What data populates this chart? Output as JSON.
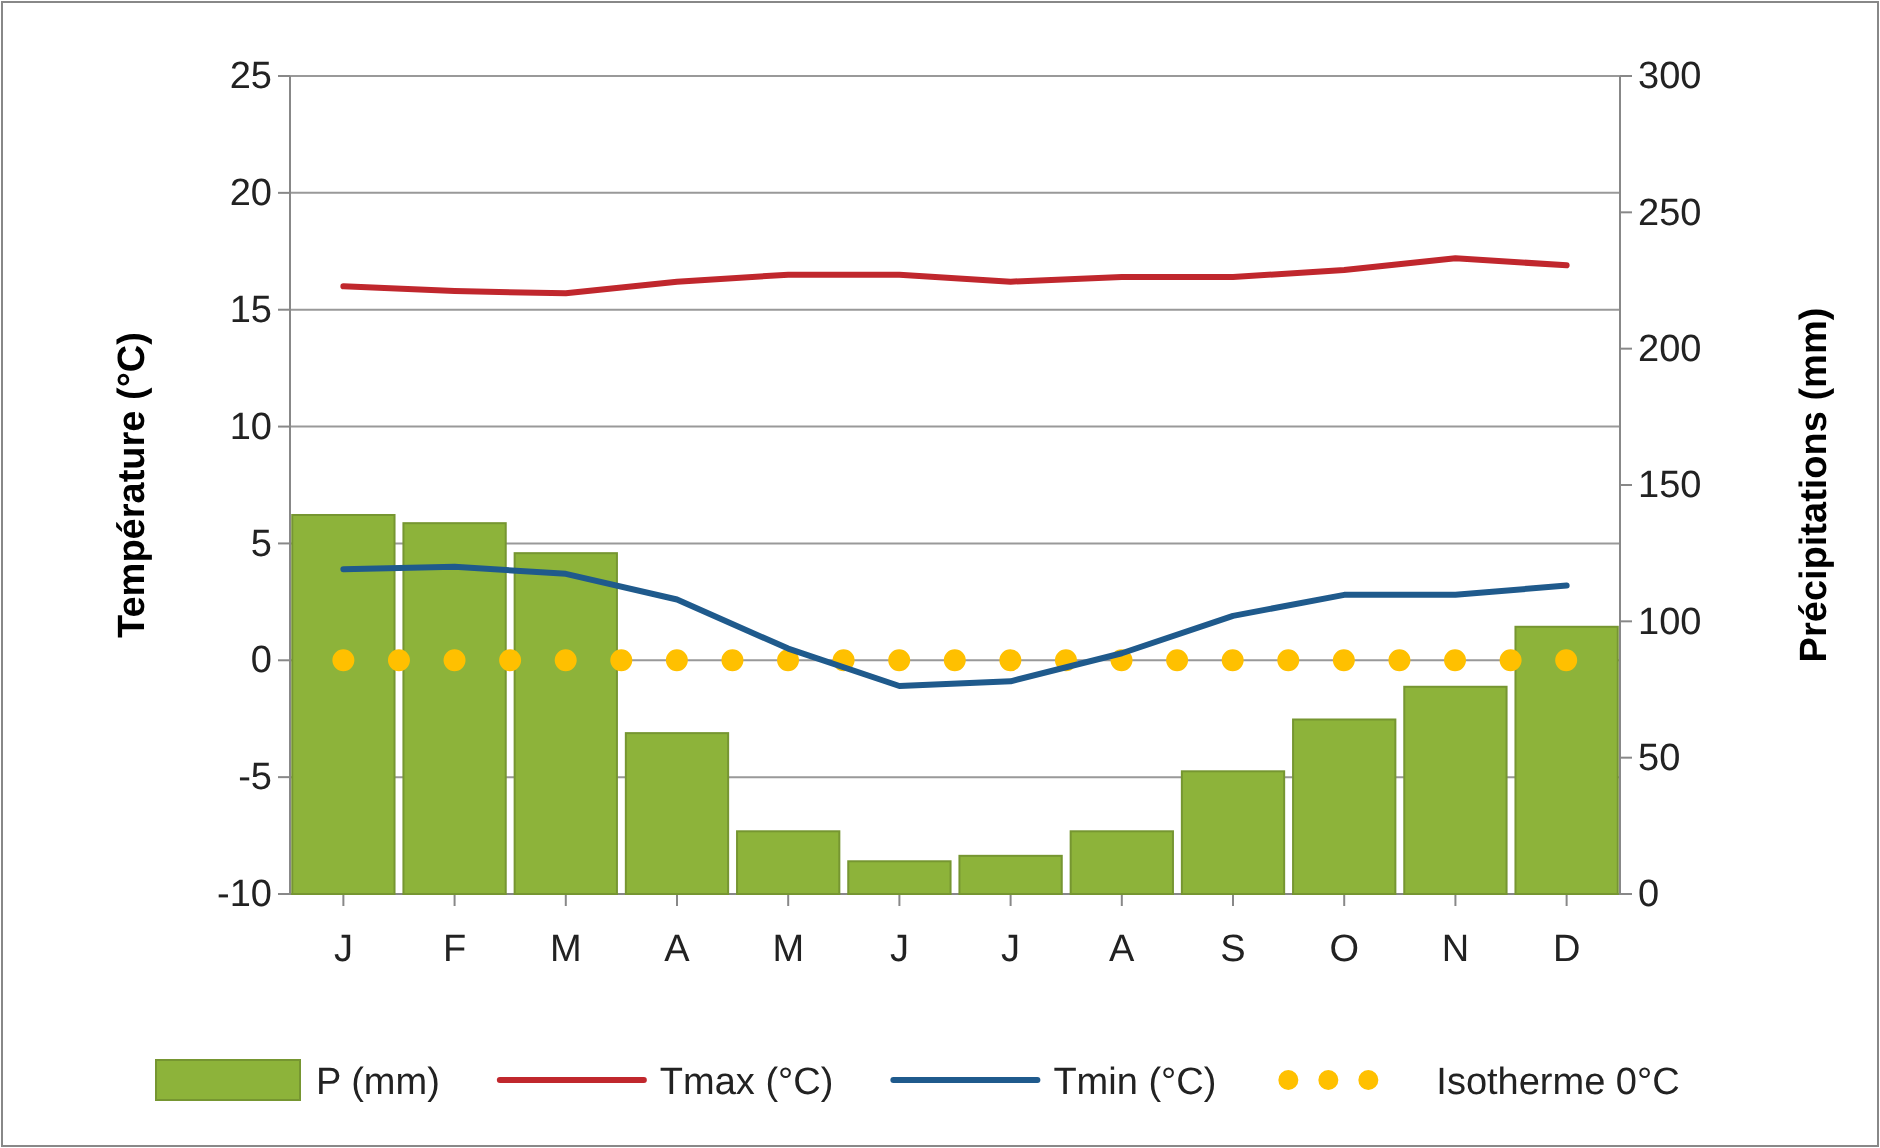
{
  "chart_data": {
    "type": "line",
    "categories": [
      "J",
      "F",
      "M",
      "A",
      "M",
      "J",
      "J",
      "A",
      "S",
      "O",
      "N",
      "D"
    ],
    "ylabel": "Température (°C)",
    "y2label": "Précipitations (mm)",
    "ylim": [
      -10,
      25
    ],
    "yticks": [
      -10,
      -5,
      0,
      5,
      10,
      15,
      20,
      25
    ],
    "y2lim": [
      0,
      300
    ],
    "y2ticks": [
      0,
      50,
      100,
      150,
      200,
      250,
      300
    ],
    "grid": "y",
    "legend": "bottom",
    "series": [
      {
        "name": "P (mm)",
        "type": "bar",
        "axis": "y2",
        "color": "#8db33a",
        "values": [
          139,
          136,
          125,
          59,
          23,
          12,
          14,
          23,
          45,
          64,
          76,
          98
        ]
      },
      {
        "name": "Tmax (°C)",
        "color": "#c0272d",
        "line_style": "solid",
        "values": [
          16.0,
          15.8,
          15.7,
          16.2,
          16.5,
          16.5,
          16.2,
          16.4,
          16.4,
          16.7,
          17.2,
          16.9
        ]
      },
      {
        "name": "Tmin (°C)",
        "color": "#1f5a8c",
        "line_style": "solid",
        "values": [
          3.9,
          4.0,
          3.7,
          2.6,
          0.5,
          -1.1,
          -0.9,
          0.3,
          1.9,
          2.8,
          2.8,
          3.2
        ]
      },
      {
        "name": "Isotherme 0°C",
        "color": "#ffc000",
        "line_style": "dotted",
        "values": [
          0,
          0,
          0,
          0,
          0,
          0,
          0,
          0,
          0,
          0,
          0,
          0
        ]
      }
    ]
  }
}
